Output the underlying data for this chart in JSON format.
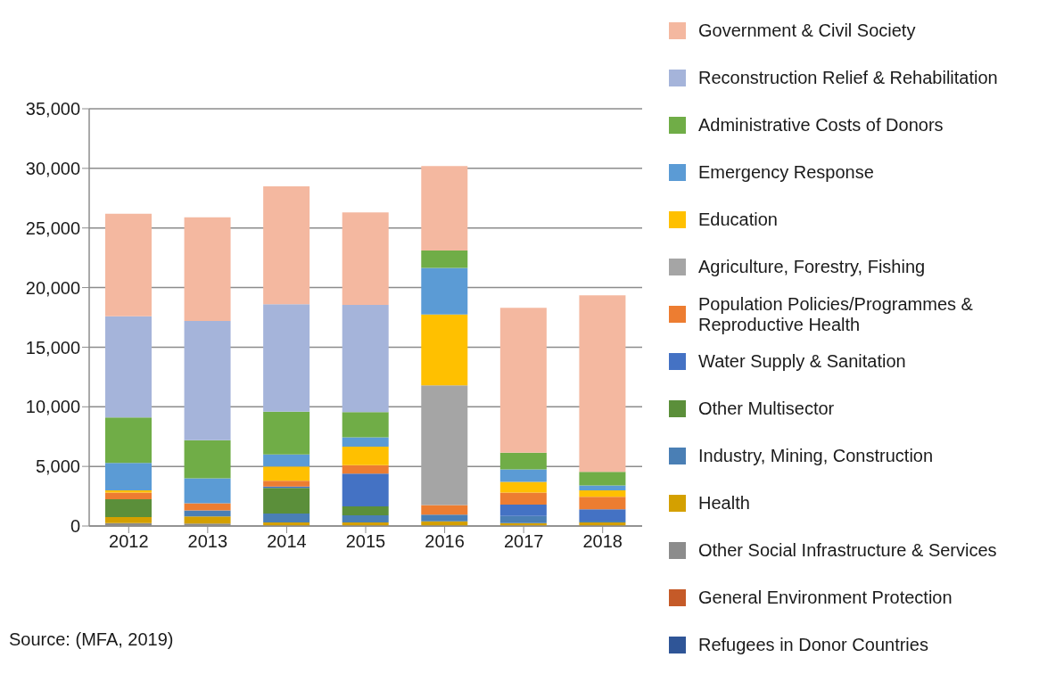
{
  "chart_data": {
    "type": "bar",
    "stacked": true,
    "categories": [
      "2012",
      "2013",
      "2014",
      "2015",
      "2016",
      "2017",
      "2018"
    ],
    "series": [
      {
        "name": "Refugees in Donor Countries",
        "color": "#2f5597",
        "values": [
          0,
          0,
          0,
          0,
          0,
          0,
          0
        ]
      },
      {
        "name": "General Environment Protection",
        "color": "#c55a28",
        "values": [
          0,
          0,
          0,
          0,
          0,
          0,
          0
        ]
      },
      {
        "name": "Other Social Infrastructure & Services",
        "color": "#8c8c8c",
        "values": [
          250,
          200,
          0,
          0,
          null,
          0,
          0
        ]
      },
      {
        "name": "Health",
        "color": "#d4a000",
        "values": [
          500,
          600,
          300,
          300,
          400,
          250,
          300
        ]
      },
      {
        "name": "Industry, Mining, Construction",
        "color": "#4a7fb5",
        "values": [
          0,
          500,
          750,
          600,
          550,
          600,
          150
        ]
      },
      {
        "name": "Other Multisector",
        "color": "#5b8f3a",
        "values": [
          1500,
          0,
          2150,
          750,
          0,
          0,
          0
        ]
      },
      {
        "name": "Water Supply & Sanitation",
        "color": "#4472c4",
        "values": [
          0,
          0,
          100,
          2750,
          0,
          950,
          950
        ]
      },
      {
        "name": "Population Policies/Programmes & Reproductive Health",
        "color": "#ed7d31",
        "values": [
          550,
          600,
          500,
          700,
          800,
          1000,
          1050
        ]
      },
      {
        "name": "Agriculture, Forestry, Fishing",
        "color": "#a5a5a5",
        "values": [
          0,
          0,
          0,
          0,
          10050,
          0,
          0
        ]
      },
      {
        "name": "Education",
        "color": "#ffc000",
        "values": [
          200,
          0,
          1200,
          1550,
          5950,
          900,
          550
        ]
      },
      {
        "name": "Emergency Response",
        "color": "#5b9bd5",
        "values": [
          2300,
          2100,
          1000,
          800,
          3900,
          1050,
          400
        ]
      },
      {
        "name": "Administrative Costs of Donors",
        "color": "#70ad47",
        "values": [
          3800,
          3200,
          3600,
          2100,
          1450,
          1400,
          1150
        ]
      },
      {
        "name": "Reconstruction Relief & Rehabilitation",
        "color": "#a5b4da",
        "values": [
          8500,
          10000,
          9000,
          9000,
          0,
          0,
          0
        ]
      },
      {
        "name": "Government & Civil Society",
        "color": "#f4b8a0",
        "values": [
          8600,
          8700,
          9900,
          7750,
          7100,
          12150,
          14800
        ]
      }
    ],
    "ylim": [
      0,
      35000
    ],
    "yticks": [
      {
        "value": 0,
        "label": "0"
      },
      {
        "value": 5000,
        "label": "5,000"
      },
      {
        "value": 10000,
        "label": "10,000"
      },
      {
        "value": 15000,
        "label": "15,000"
      },
      {
        "value": 20000,
        "label": "20,000"
      },
      {
        "value": 25000,
        "label": "25,000"
      },
      {
        "value": 30000,
        "label": "30,000"
      },
      {
        "value": 35000,
        "label": "35,000"
      }
    ],
    "grid": "y",
    "legend": "right",
    "annotations": [
      "Source: (MFA, 2019)"
    ]
  }
}
